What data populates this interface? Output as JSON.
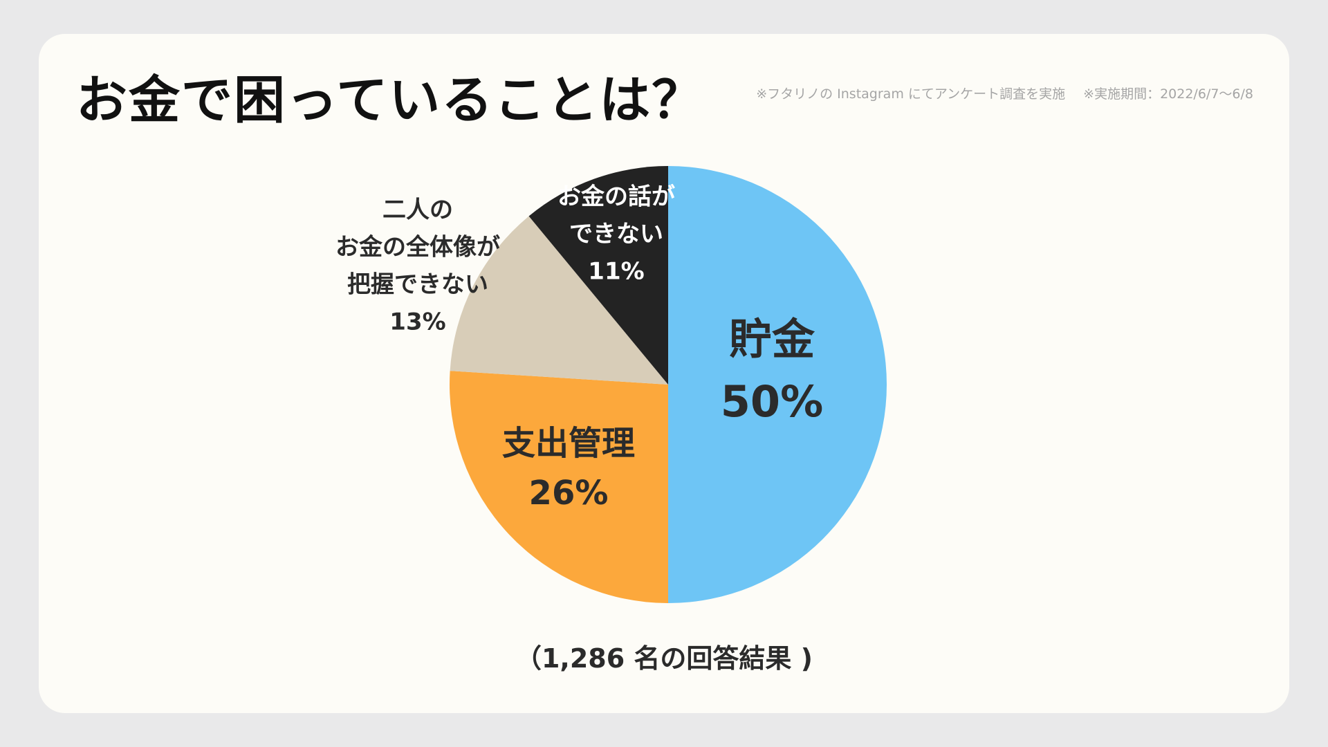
{
  "header": {
    "title": "お金で困っていることは？",
    "note_survey": "※フタリノの Instagram にてアンケート調査を実施",
    "note_period": "※実施期間：2022/6/7〜6/8"
  },
  "footer": {
    "caption": "（1,286 名の回答結果 )"
  },
  "colors": {
    "background": "#e9e9ea",
    "card": "#fdfcf7",
    "savings": "#6ec5f5",
    "spending": "#fca83c",
    "overview": "#d8cdb8",
    "talk": "#232323"
  },
  "chart_data": {
    "type": "pie",
    "start": "12 o'clock, clockwise",
    "slices": [
      {
        "lines": [
          "貯金"
        ],
        "value": 50,
        "value_label": "50%",
        "color": "#6ec5f5",
        "text_color": "#2b2b2b",
        "label_placement": "inside"
      },
      {
        "lines": [
          "支出管理"
        ],
        "value": 26,
        "value_label": "26%",
        "color": "#fca83c",
        "text_color": "#2b2b2b",
        "label_placement": "inside"
      },
      {
        "lines": [
          "二人の",
          "お金の全体像が",
          "把握できない"
        ],
        "value": 13,
        "value_label": "13%",
        "color": "#d8cdb8",
        "text_color": "#2b2b2b",
        "label_placement": "outside"
      },
      {
        "lines": [
          "お金の話が",
          "できない"
        ],
        "value": 11,
        "value_label": "11%",
        "color": "#232323",
        "text_color": "#ffffff",
        "label_placement": "inside"
      }
    ]
  }
}
